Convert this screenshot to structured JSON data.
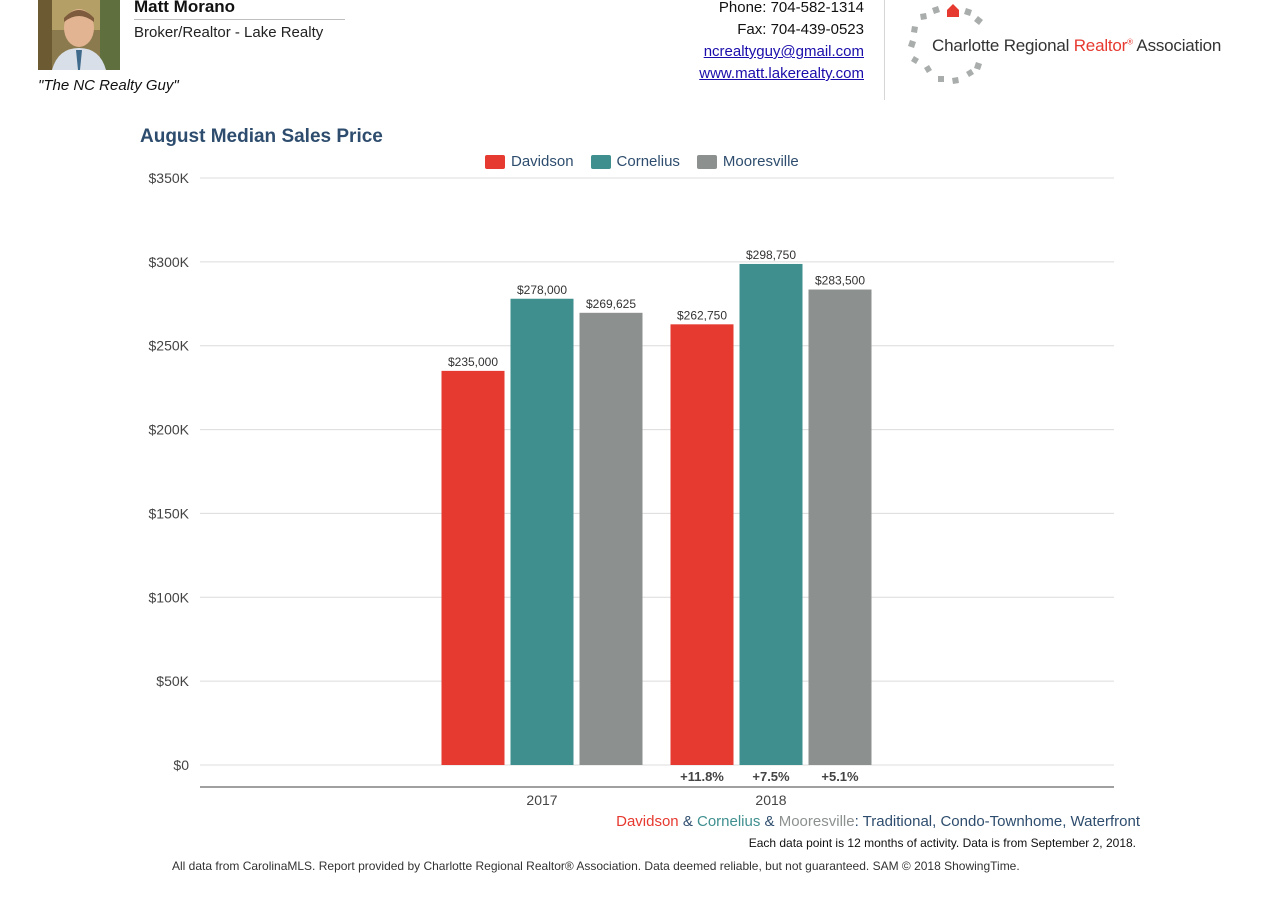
{
  "agent": {
    "name": "Matt Morano",
    "title": "Broker/Realtor - Lake Realty",
    "tagline": "\"The NC Realty Guy\"",
    "phone": "Phone: 704-582-1314",
    "fax": "Fax: 704-439-0523",
    "email": "ncrealtyguy@gmail.com",
    "website": "www.matt.lakerealty.com"
  },
  "association": {
    "name_prefix": "Charlotte Regional ",
    "name_realtor": "Realtor",
    "name_mark": "®",
    "name_suffix": " Association"
  },
  "colors": {
    "davidson": "#e6392f",
    "cornelius": "#3f8f8f",
    "mooresville": "#8c918f",
    "title": "#2e4d6e",
    "grid": "#dcdcdc"
  },
  "chart_data": {
    "type": "bar",
    "title": "August Median Sales Price",
    "xlabel": "",
    "ylabel": "",
    "categories": [
      "2017",
      "2018"
    ],
    "ylim": [
      0,
      350000
    ],
    "y_ticks": [
      {
        "value": 0,
        "label": "$0"
      },
      {
        "value": 50000,
        "label": "$50K"
      },
      {
        "value": 100000,
        "label": "$100K"
      },
      {
        "value": 150000,
        "label": "$150K"
      },
      {
        "value": 200000,
        "label": "$200K"
      },
      {
        "value": 250000,
        "label": "$250K"
      },
      {
        "value": 300000,
        "label": "$300K"
      },
      {
        "value": 350000,
        "label": "$350K"
      }
    ],
    "grid": true,
    "legend_position": "top-center",
    "series": [
      {
        "name": "Davidson",
        "color": "#e6392f",
        "values": [
          235000,
          262750
        ],
        "labels": [
          "$235,000",
          "$262,750"
        ]
      },
      {
        "name": "Cornelius",
        "color": "#3f8f8f",
        "values": [
          278000,
          298750
        ],
        "labels": [
          "$278,000",
          "$298,750"
        ]
      },
      {
        "name": "Mooresville",
        "color": "#8c918f",
        "values": [
          269625,
          283500
        ],
        "labels": [
          "$269,625",
          "$283,500"
        ]
      }
    ],
    "change_labels": [
      "+11.8%",
      "+7.5%",
      "+5.1%"
    ]
  },
  "footer": {
    "cities_davidson": "Davidson",
    "cities_amp1": " & ",
    "cities_cornelius": "Cornelius",
    "cities_amp2": " & ",
    "cities_mooresville": "Mooresville",
    "cities_rest": ": Traditional, Condo-Townhome, Waterfront",
    "activity_note": "Each data point is 12 months of activity. Data is from September 2, 2018.",
    "source_note": "All data from CarolinaMLS. Report provided by Charlotte Regional Realtor® Association. Data deemed reliable, but not guaranteed. SAM © 2018 ShowingTime."
  }
}
